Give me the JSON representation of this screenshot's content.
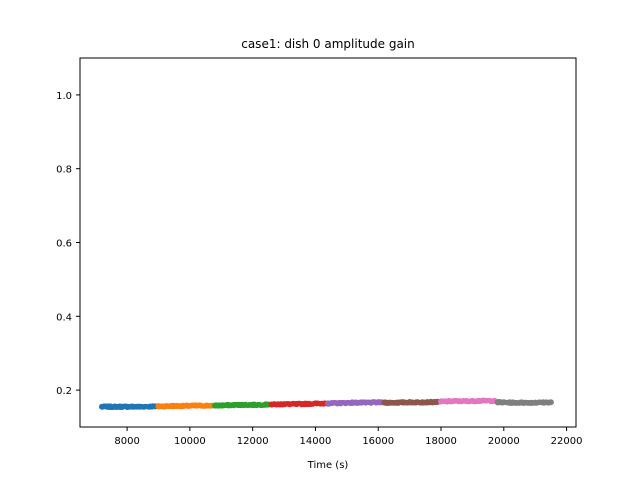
{
  "chart_data": {
    "type": "scatter",
    "title": "case1: dish 0 amplitude gain",
    "xlabel": "Time (s)",
    "ylabel": "",
    "xlim": [
      6500,
      22300
    ],
    "ylim": [
      0.1,
      1.1
    ],
    "x_ticks": [
      8000,
      10000,
      12000,
      14000,
      16000,
      18000,
      20000,
      22000
    ],
    "y_ticks": [
      0.2,
      0.4,
      0.6,
      0.8,
      1.0
    ],
    "x_tick_labels": [
      "8000",
      "10000",
      "12000",
      "14000",
      "16000",
      "18000",
      "20000",
      "22000"
    ],
    "y_tick_labels": [
      "0.2",
      "0.4",
      "0.6",
      "0.8",
      "1.0"
    ],
    "grid": false,
    "legend": "none",
    "series": [
      {
        "color": "#1f77b4",
        "points": [
          [
            7200,
            0.155
          ],
          [
            7600,
            0.155
          ],
          [
            8000,
            0.155
          ],
          [
            8400,
            0.155
          ],
          [
            8900,
            0.156
          ]
        ]
      },
      {
        "color": "#ff7f0e",
        "points": [
          [
            9000,
            0.156
          ],
          [
            9400,
            0.157
          ],
          [
            9800,
            0.157
          ],
          [
            10200,
            0.158
          ],
          [
            10700,
            0.158
          ]
        ]
      },
      {
        "color": "#2ca02c",
        "points": [
          [
            10800,
            0.158
          ],
          [
            11200,
            0.159
          ],
          [
            11600,
            0.16
          ],
          [
            12000,
            0.16
          ],
          [
            12500,
            0.161
          ]
        ]
      },
      {
        "color": "#d62728",
        "points": [
          [
            12600,
            0.161
          ],
          [
            13000,
            0.162
          ],
          [
            13400,
            0.162
          ],
          [
            13800,
            0.163
          ],
          [
            14300,
            0.164
          ]
        ]
      },
      {
        "color": "#9467bd",
        "points": [
          [
            14400,
            0.164
          ],
          [
            14800,
            0.165
          ],
          [
            15200,
            0.166
          ],
          [
            15600,
            0.166
          ],
          [
            16100,
            0.167
          ]
        ]
      },
      {
        "color": "#8c564b",
        "points": [
          [
            16200,
            0.166
          ],
          [
            16600,
            0.166
          ],
          [
            17000,
            0.167
          ],
          [
            17400,
            0.167
          ],
          [
            17900,
            0.168
          ]
        ]
      },
      {
        "color": "#e377c2",
        "points": [
          [
            18000,
            0.169
          ],
          [
            18400,
            0.17
          ],
          [
            18800,
            0.17
          ],
          [
            19200,
            0.171
          ],
          [
            19700,
            0.171
          ]
        ]
      },
      {
        "color": "#7f7f7f",
        "points": [
          [
            19800,
            0.167
          ],
          [
            20200,
            0.166
          ],
          [
            20600,
            0.166
          ],
          [
            21000,
            0.166
          ],
          [
            21500,
            0.167
          ]
        ]
      }
    ]
  }
}
